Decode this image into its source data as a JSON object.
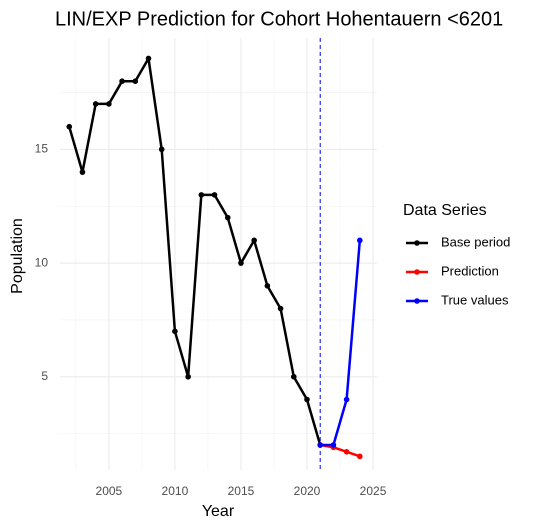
{
  "chart_data": {
    "type": "line",
    "title": "LIN/EXP Prediction for Cohort Hohentauern <6201",
    "x_label": "Year",
    "y_label": "Population",
    "legend_title": "Data Series",
    "legend": "right",
    "grid": true,
    "x": [
      2002,
      2003,
      2004,
      2005,
      2006,
      2007,
      2008,
      2009,
      2010,
      2011,
      2012,
      2013,
      2014,
      2015,
      2016,
      2017,
      2018,
      2019,
      2020,
      2021,
      2022,
      2023,
      2024
    ],
    "series": [
      {
        "name": "Base period",
        "color": "#000000",
        "values": [
          16,
          14,
          17,
          17,
          18,
          18,
          19,
          15,
          7,
          5,
          13,
          13,
          12,
          10,
          11,
          9,
          8,
          5,
          4,
          2,
          null,
          null,
          null
        ]
      },
      {
        "name": "Prediction",
        "color": "#ff0000",
        "values": [
          null,
          null,
          null,
          null,
          null,
          null,
          null,
          null,
          null,
          null,
          null,
          null,
          null,
          null,
          null,
          null,
          null,
          null,
          null,
          2,
          1.9,
          1.7,
          1.5
        ]
      },
      {
        "name": "True values",
        "color": "#0000ff",
        "values": [
          null,
          null,
          null,
          null,
          null,
          null,
          null,
          null,
          null,
          null,
          null,
          null,
          null,
          null,
          null,
          null,
          null,
          null,
          null,
          2,
          2,
          4,
          11
        ]
      }
    ],
    "vline": 2021,
    "vline_color": "#0000ff",
    "xlim": [
      2001.3,
      2025.3
    ],
    "xticks": [
      2005,
      2010,
      2015,
      2020,
      2025
    ],
    "ylim": [
      0.9,
      19.9
    ],
    "yticks": [
      5,
      10,
      15
    ]
  }
}
